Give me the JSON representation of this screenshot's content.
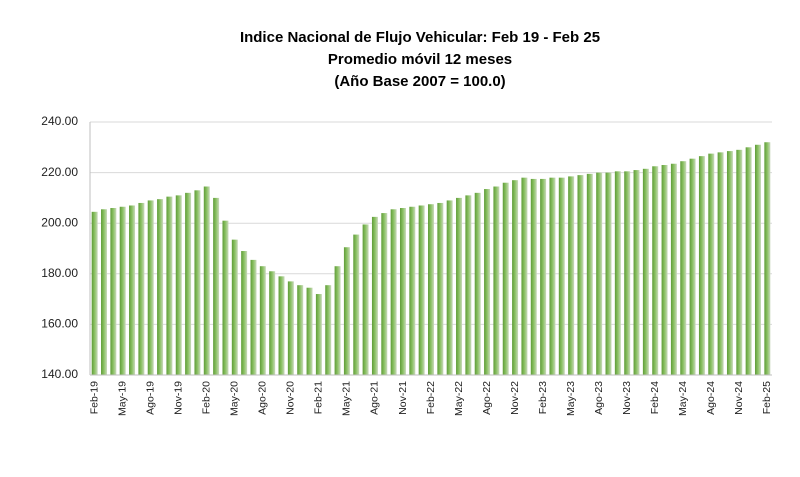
{
  "chart_data": {
    "type": "bar",
    "title": "Indice Nacional de Flujo Vehicular: Feb 19 - Feb 25",
    "subtitle": [
      "Promedio móvil 12 meses",
      "(Año Base 2007 = 100.0)"
    ],
    "categories": [
      "Feb-19",
      null,
      null,
      "May-19",
      null,
      null,
      "Ago-19",
      null,
      null,
      "Nov-19",
      null,
      null,
      "Feb-20",
      null,
      null,
      "May-20",
      null,
      null,
      "Ago-20",
      null,
      null,
      "Nov-20",
      null,
      null,
      "Feb-21",
      null,
      null,
      "May-21",
      null,
      null,
      "Ago-21",
      null,
      null,
      "Nov-21",
      null,
      null,
      "Feb-22",
      null,
      null,
      "May-22",
      null,
      null,
      "Ago-22",
      null,
      null,
      "Nov-22",
      null,
      null,
      "Feb-23",
      null,
      null,
      "May-23",
      null,
      null,
      "Ago-23",
      null,
      null,
      "Nov-23",
      null,
      null,
      "Feb-24",
      null,
      null,
      "May-24",
      null,
      null,
      "Ago-24",
      null,
      null,
      "Nov-24",
      null,
      null,
      "Feb-25"
    ],
    "values": [
      204.5,
      205.5,
      206,
      206.5,
      207,
      208,
      209,
      209.5,
      210.5,
      211,
      212,
      213,
      214.5,
      210,
      201,
      193.5,
      189,
      185.5,
      183,
      181,
      179,
      177,
      175.5,
      174.5,
      172,
      175.5,
      183,
      190.5,
      195.5,
      199.5,
      202.5,
      204,
      205.5,
      206,
      206.5,
      207,
      207.5,
      208,
      209,
      210,
      211,
      212,
      213.5,
      214.5,
      216,
      217,
      218,
      217.5,
      217.5,
      218,
      218,
      218.5,
      219,
      219.5,
      220,
      220,
      220.5,
      220.5,
      221,
      221.5,
      222.5,
      223,
      223.5,
      224.5,
      225.5,
      226.5,
      227.5,
      228,
      228.5,
      229,
      230,
      231,
      232
    ],
    "color": "#70ad47",
    "ylim": [
      140,
      240
    ],
    "yticks": [
      {
        "value": 140,
        "label": "140.00"
      },
      {
        "value": 160,
        "label": "160.00"
      },
      {
        "value": 180,
        "label": "180.00"
      },
      {
        "value": 200,
        "label": "200.00"
      },
      {
        "value": 220,
        "label": "220.00"
      },
      {
        "value": 240,
        "label": "240.00"
      }
    ],
    "grid": true
  }
}
